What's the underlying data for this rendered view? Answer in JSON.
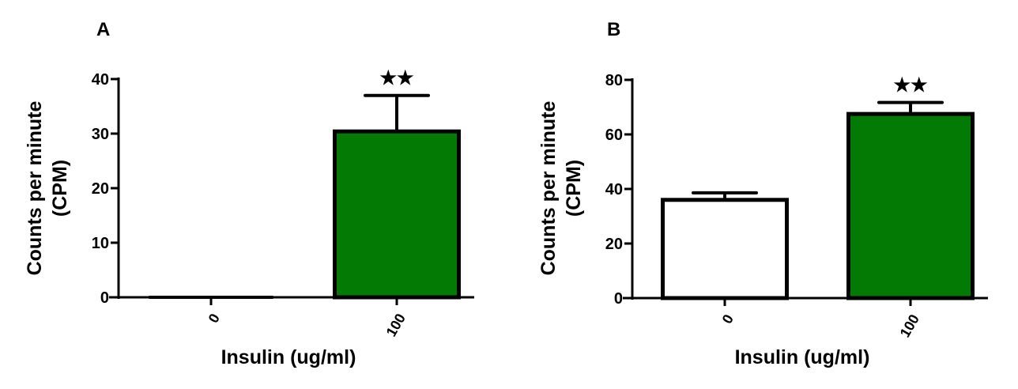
{
  "colors": {
    "treated": "#037a03",
    "control": "#ffffff",
    "stroke": "#000000"
  },
  "chart_data": [
    {
      "type": "bar",
      "panel_label": "A",
      "categories": [
        "0",
        "100"
      ],
      "values": [
        0,
        30.4
      ],
      "error_upper": [
        0,
        37.0
      ],
      "significance": [
        "",
        "★★"
      ],
      "fills": [
        "control",
        "treated"
      ],
      "xlabel": "Insulin (ug/ml)",
      "ylabel": [
        "Counts per minute",
        "(CPM)"
      ],
      "ylim": [
        0,
        40
      ],
      "yticks": [
        "0",
        "10",
        "20",
        "30",
        "40"
      ],
      "grid": false
    },
    {
      "type": "bar",
      "panel_label": "B",
      "categories": [
        "0",
        "100"
      ],
      "values": [
        36.0,
        67.5
      ],
      "error_upper": [
        38.6,
        71.7
      ],
      "significance": [
        "",
        "★★"
      ],
      "fills": [
        "control",
        "treated"
      ],
      "xlabel": "Insulin (ug/ml)",
      "ylabel": [
        "Counts per minute",
        "(CPM)"
      ],
      "ylim": [
        0,
        80
      ],
      "yticks": [
        "0",
        "20",
        "40",
        "60",
        "80"
      ],
      "grid": false
    }
  ]
}
